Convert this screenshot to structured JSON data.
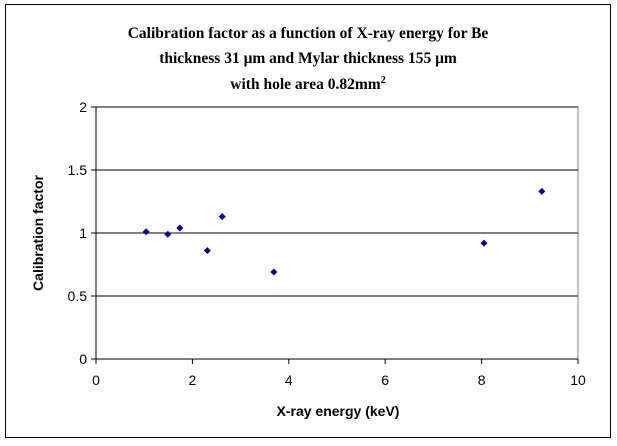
{
  "chart_data": {
    "type": "scatter",
    "title_lines": [
      "Calibration factor as a function of X-ray energy for Be",
      "thickness 31 μm and Mylar thickness 155 μm"
    ],
    "title_line3_main": "with hole area 0.82mm",
    "title_line3_sup": "2",
    "xlabel": "X-ray energy (keV)",
    "ylabel": "Calibration factor",
    "xlim": [
      0,
      10
    ],
    "ylim": [
      0,
      2
    ],
    "xticks": [
      0,
      2,
      4,
      6,
      8,
      10
    ],
    "yticks": [
      0,
      0.5,
      1,
      1.5,
      2
    ],
    "horizontal_gridlines": true,
    "vertical_gridlines": false,
    "legend": "none",
    "marker": "diamond",
    "marker_color": "#000080",
    "points": [
      {
        "x": 1.04,
        "y": 1.01
      },
      {
        "x": 1.49,
        "y": 0.99
      },
      {
        "x": 1.74,
        "y": 1.04
      },
      {
        "x": 2.31,
        "y": 0.86
      },
      {
        "x": 2.62,
        "y": 1.13
      },
      {
        "x": 3.69,
        "y": 0.69
      },
      {
        "x": 8.05,
        "y": 0.92
      },
      {
        "x": 9.25,
        "y": 1.33
      }
    ]
  }
}
